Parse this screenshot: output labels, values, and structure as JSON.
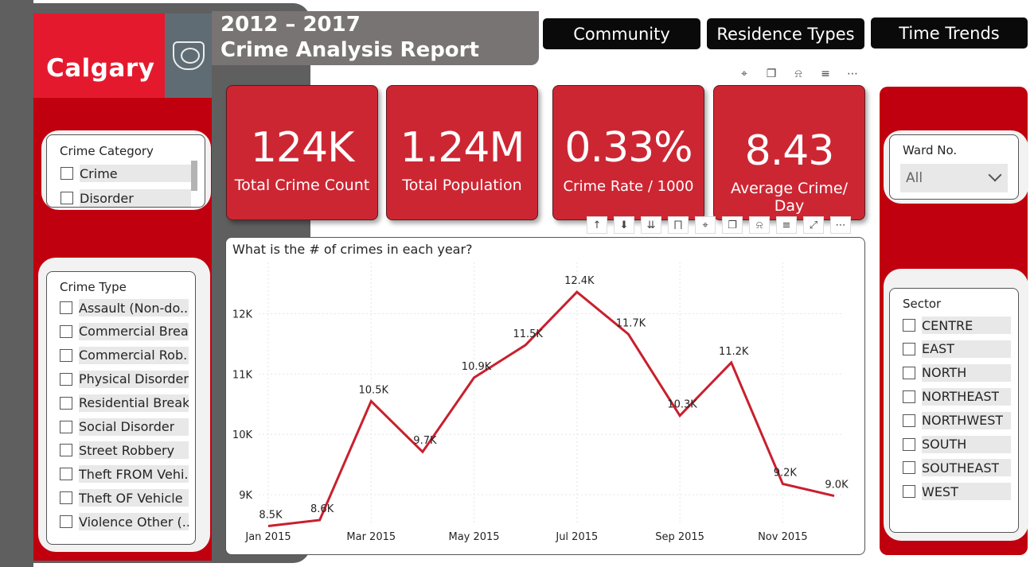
{
  "header": {
    "logo_text": "Calgary",
    "title_line1": "2012 – 2017",
    "title_line2": "Crime Analysis Report"
  },
  "nav": [
    {
      "label": "Community"
    },
    {
      "label": "Residence Types"
    },
    {
      "label": "Time Trends"
    }
  ],
  "kpis": [
    {
      "value": "124K",
      "label": "Total Crime Count"
    },
    {
      "value": "1.24M",
      "label": "Total Population"
    },
    {
      "value": "0.33%",
      "label": "Crime Rate / 1000"
    },
    {
      "value": "8.43",
      "label": "Average Crime/ Day"
    }
  ],
  "crime_category": {
    "title": "Crime Category",
    "items": [
      "Crime",
      "Disorder"
    ]
  },
  "crime_type": {
    "title": "Crime Type",
    "items": [
      "Assault (Non-do...",
      "Commercial Brea...",
      "Commercial Rob...",
      "Physical Disorder",
      "Residential Break...",
      "Social Disorder",
      "Street Robbery",
      "Theft FROM Vehi...",
      "Theft OF Vehicle",
      "Violence Other (..."
    ]
  },
  "ward": {
    "title": "Ward No.",
    "selected": "All"
  },
  "sector": {
    "title": "Sector",
    "items": [
      "CENTRE",
      "EAST",
      "NORTH",
      "NORTHEAST",
      "NORTHWEST",
      "SOUTH",
      "SOUTHEAST",
      "WEST"
    ]
  },
  "icons": {
    "visual_header": [
      "pin-icon",
      "copy-icon",
      "bell-icon",
      "filter-icon",
      "more-icon"
    ],
    "chart_header": [
      "arrow-up-icon",
      "drill-down-icon",
      "expand-all-icon",
      "hierarchy-icon",
      "pin-icon",
      "copy-icon",
      "bell-icon",
      "filter-icon",
      "focus-icon",
      "more-icon"
    ]
  },
  "colors": {
    "brand_red": "#c1000f",
    "kpi_red": "#cd2633",
    "line": "#c8202e"
  },
  "chart_data": {
    "type": "line",
    "title": "What is the # of crimes in each year?",
    "x": [
      "Jan 2015",
      "Feb 2015",
      "Mar 2015",
      "Apr 2015",
      "May 2015",
      "Jun 2015",
      "Jul 2015",
      "Aug 2015",
      "Sep 2015",
      "Oct 2015",
      "Nov 2015",
      "Dec 2015"
    ],
    "x_tick_labels": [
      "Jan 2015",
      "Mar 2015",
      "May 2015",
      "Jul 2015",
      "Sep 2015",
      "Nov 2015"
    ],
    "values": [
      8480,
      8580,
      10550,
      9710,
      10940,
      11480,
      12360,
      11660,
      10310,
      11190,
      9180,
      8980
    ],
    "data_labels": [
      "8.5K",
      "8.6K",
      "10.5K",
      "9.7K",
      "10.9K",
      "11.5K",
      "12.4K",
      "11.7K",
      "10.3K",
      "11.2K",
      "9.2K",
      "9.0K"
    ],
    "y_ticks": [
      9000,
      10000,
      11000,
      12000
    ],
    "y_tick_labels": [
      "9K",
      "10K",
      "11K",
      "12K"
    ],
    "ylim": [
      8500,
      12850
    ],
    "grid": true
  }
}
